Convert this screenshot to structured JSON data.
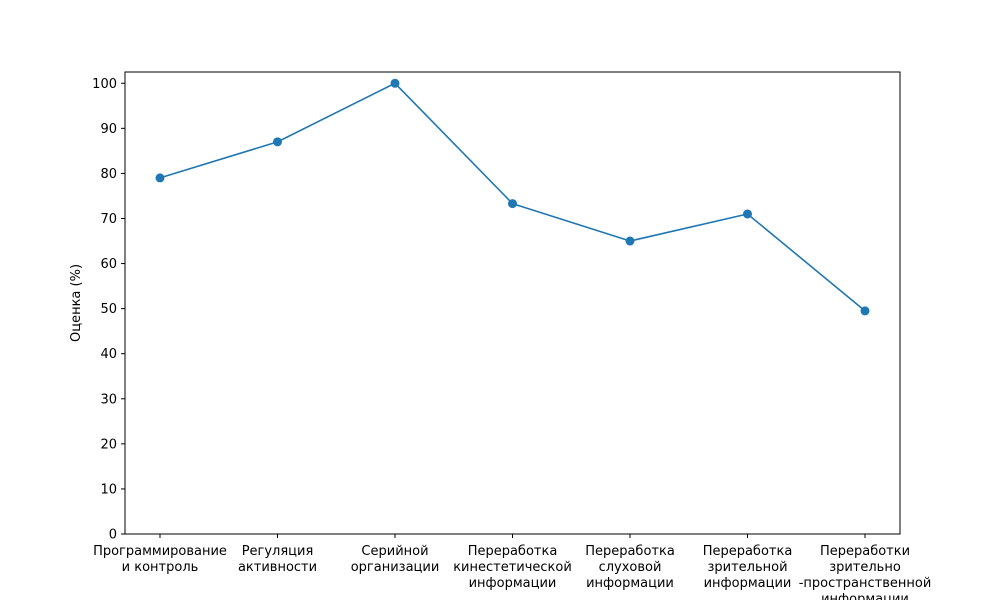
{
  "chart_data": {
    "type": "line",
    "title": "",
    "xlabel": "",
    "ylabel": "Оценка (%)",
    "ylim": [
      0,
      102.5
    ],
    "yticks": [
      0,
      10,
      20,
      30,
      40,
      50,
      60,
      70,
      80,
      90,
      100
    ],
    "grid": false,
    "categories": [
      [
        "Программирование",
        "и контроль"
      ],
      [
        "Регуляция",
        "активности"
      ],
      [
        "Серийной",
        "организации"
      ],
      [
        "Переработка",
        "кинестетической",
        "информации"
      ],
      [
        "Переработка",
        "слуховой",
        "информации"
      ],
      [
        "Переработка",
        "зрительной",
        "информации"
      ],
      [
        "Переработки",
        "зрительно",
        "-пространственной",
        "информации"
      ]
    ],
    "series": [
      {
        "color": "#1f77b4",
        "marker": "circle",
        "values": [
          79,
          87,
          100,
          73.3,
          65,
          71,
          49.5
        ]
      }
    ]
  }
}
